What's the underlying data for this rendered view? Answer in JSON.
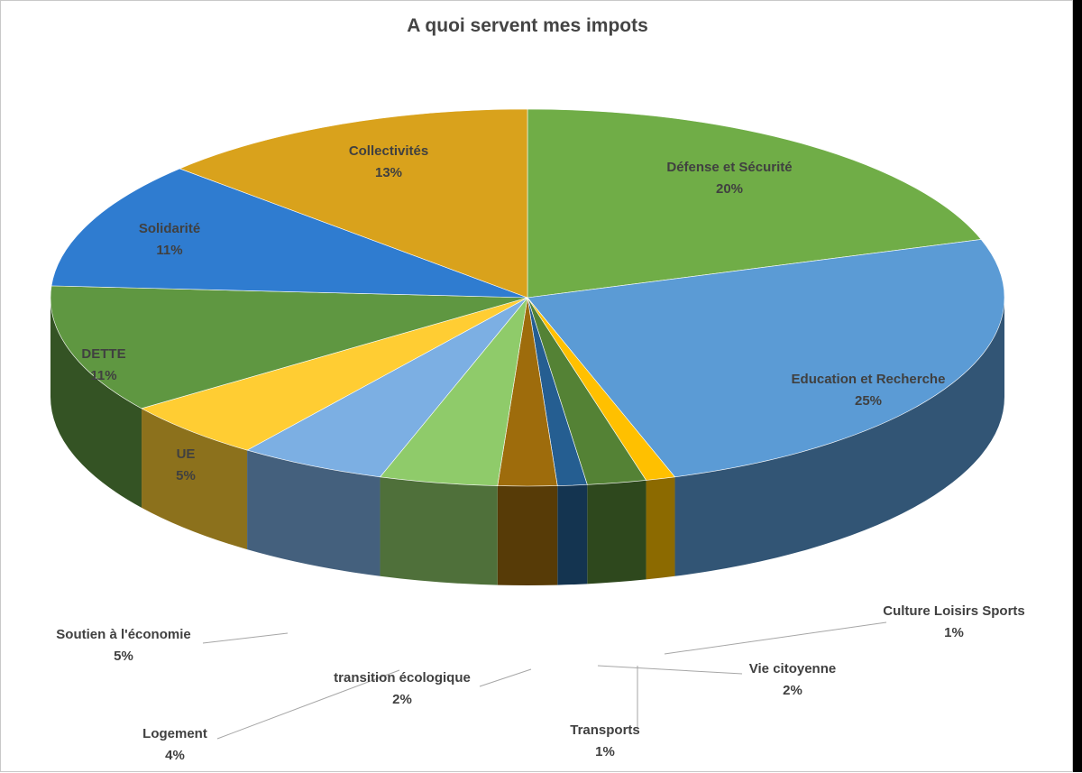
{
  "chart_data": {
    "type": "pie",
    "style": "3d",
    "title": "A quoi servent mes impots",
    "slices": [
      {
        "label": "Défense et Sécurité",
        "pct_label": "20%",
        "value": 20,
        "color": "#70ad47"
      },
      {
        "label": "Education et Recherche",
        "pct_label": "25%",
        "value": 25,
        "color": "#5b9bd5"
      },
      {
        "label": "Culture Loisirs Sports",
        "pct_label": "1%",
        "value": 1,
        "color": "#ffc000"
      },
      {
        "label": "Vie citoyenne",
        "pct_label": "2%",
        "value": 2,
        "color": "#548235"
      },
      {
        "label": "Transports",
        "pct_label": "1%",
        "value": 1,
        "color": "#255e91"
      },
      {
        "label": "transition écologique",
        "pct_label": "2%",
        "value": 2,
        "color": "#9e6c0c"
      },
      {
        "label": "Logement",
        "pct_label": "4%",
        "value": 4,
        "color": "#8fcb6a"
      },
      {
        "label": "Soutien à l'économie",
        "pct_label": "5%",
        "value": 5,
        "color": "#7cafe3"
      },
      {
        "label": "UE",
        "pct_label": "5%",
        "value": 5,
        "color": "#ffcd33"
      },
      {
        "label": "DETTE",
        "pct_label": "11%",
        "value": 11,
        "color": "#5f9741"
      },
      {
        "label": "Solidarité",
        "pct_label": "11%",
        "value": 11,
        "color": "#2f7cd0"
      },
      {
        "label": "Collectivités",
        "pct_label": "13%",
        "value": 13,
        "color": "#d9a21c"
      }
    ]
  }
}
